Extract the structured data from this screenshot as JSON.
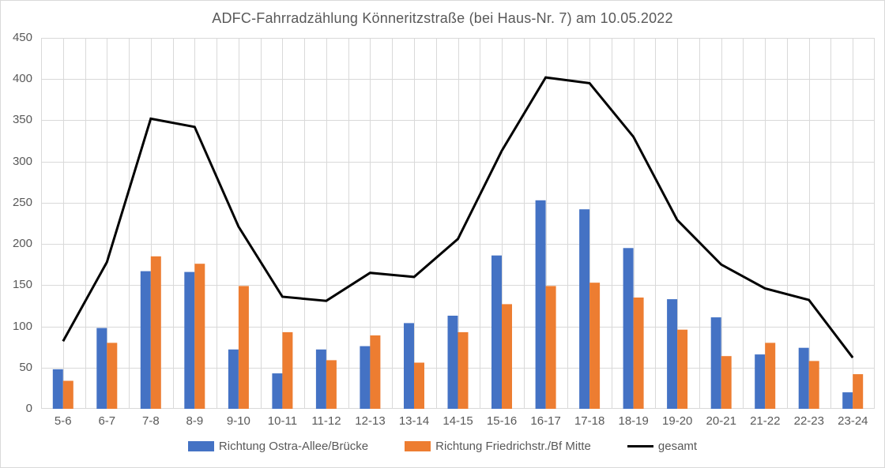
{
  "title": "ADFC-Fahrradzählung Könneritzstraße (bei Haus-Nr. 7) am 10.05.2022",
  "colors": {
    "blue": "#4472C4",
    "orange": "#ED7D31",
    "line": "#000000",
    "grid": "#D9D9D9",
    "text": "#595959",
    "border": "#D9D9D9"
  },
  "chart_data": {
    "type": "bar",
    "title": "ADFC-Fahrradzählung Könneritzstraße (bei Haus-Nr. 7) am 10.05.2022",
    "categories": [
      "5-6",
      "6-7",
      "7-8",
      "8-9",
      "9-10",
      "10-11",
      "11-12",
      "12-13",
      "13-14",
      "14-15",
      "15-16",
      "16-17",
      "17-18",
      "18-19",
      "19-20",
      "20-21",
      "21-22",
      "22-23",
      "23-24"
    ],
    "series": [
      {
        "name": "Richtung Ostra-Allee/Brücke",
        "type": "bar",
        "color": "#4472C4",
        "values": [
          48,
          98,
          167,
          166,
          72,
          43,
          72,
          76,
          104,
          113,
          186,
          253,
          242,
          195,
          133,
          111,
          66,
          74,
          20
        ]
      },
      {
        "name": "Richtung Friedrichstr./Bf Mitte",
        "type": "bar",
        "color": "#ED7D31",
        "values": [
          34,
          80,
          185,
          176,
          149,
          93,
          59,
          89,
          56,
          93,
          127,
          149,
          153,
          135,
          96,
          64,
          80,
          58,
          42
        ]
      },
      {
        "name": "gesamt",
        "type": "line",
        "color": "#000000",
        "values": [
          82,
          178,
          352,
          342,
          221,
          136,
          131,
          165,
          160,
          206,
          313,
          402,
          395,
          330,
          229,
          175,
          146,
          132,
          62
        ]
      }
    ],
    "xlabel": "",
    "ylabel": "",
    "ylim": [
      0,
      450
    ],
    "ytick_step": 50,
    "grid": "horizontal-major and vertical-minor gridlines, light gray",
    "legend_position": "bottom"
  }
}
